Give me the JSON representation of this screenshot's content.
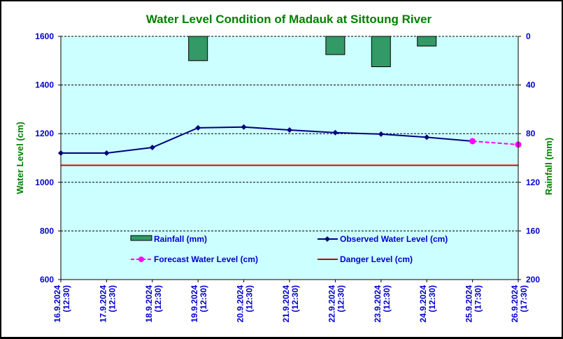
{
  "chart_data": {
    "type": "line",
    "title": "Water Level Condition of Madauk at Sittoung River",
    "ylabel": "Water Level (cm)",
    "y2label": "Rainfall (mm)",
    "ylim": [
      600,
      1600
    ],
    "yticks": [
      1600,
      1400,
      1200,
      1000,
      800,
      600
    ],
    "y2lim": [
      0,
      200
    ],
    "y2ticks": [
      0,
      40,
      80,
      120,
      160,
      200
    ],
    "y2_inverted": true,
    "categories": [
      [
        "16.9.2024",
        "(12:30)"
      ],
      [
        "17.9.2024",
        "(12:30)"
      ],
      [
        "18.9.2024",
        "(12:30)"
      ],
      [
        "19.9.2024",
        "(12:30)"
      ],
      [
        "20.9.2024",
        "(12:30)"
      ],
      [
        "21.9.2024",
        "(12:30)"
      ],
      [
        "22.9.2024",
        "(12:30)"
      ],
      [
        "23.9.2024",
        "(12:30)"
      ],
      [
        "24.9.2024",
        "(12:30)"
      ],
      [
        "25.9.2024",
        "(17:30)"
      ],
      [
        "26.9.2024",
        "(17:30)"
      ]
    ],
    "grid": true,
    "series": [
      {
        "name": "Rainfall (mm)",
        "type": "bar",
        "axis": "right",
        "color": "#339966",
        "values": [
          null,
          null,
          null,
          20,
          null,
          null,
          15,
          25,
          8,
          null,
          null
        ]
      },
      {
        "name": "Observed Water Level (cm)",
        "type": "line",
        "axis": "left",
        "color": "#000080",
        "values": [
          1120,
          1120,
          1143,
          1224,
          1227,
          1215,
          1204,
          1198,
          1185,
          1169,
          null
        ]
      },
      {
        "name": "Forecast Water Level (cm)",
        "type": "line-dashed",
        "axis": "left",
        "color": "#FF00FF",
        "values": [
          null,
          null,
          null,
          null,
          null,
          null,
          null,
          null,
          null,
          1169,
          1155
        ]
      },
      {
        "name": "Danger Level (cm)",
        "type": "hline",
        "axis": "left",
        "color": "#E00000",
        "value": 1070
      }
    ],
    "legend": {
      "rainfall": "Rainfall (mm)",
      "observed": "Observed Water Level (cm)",
      "forecast": "Forecast Water Level (cm)",
      "danger": "Danger Level (cm)",
      "placement": "bottom-inside"
    },
    "colors": {
      "plot_bg": "#CCFFFF",
      "title": "#008000",
      "ticks": "#0000CC"
    }
  }
}
